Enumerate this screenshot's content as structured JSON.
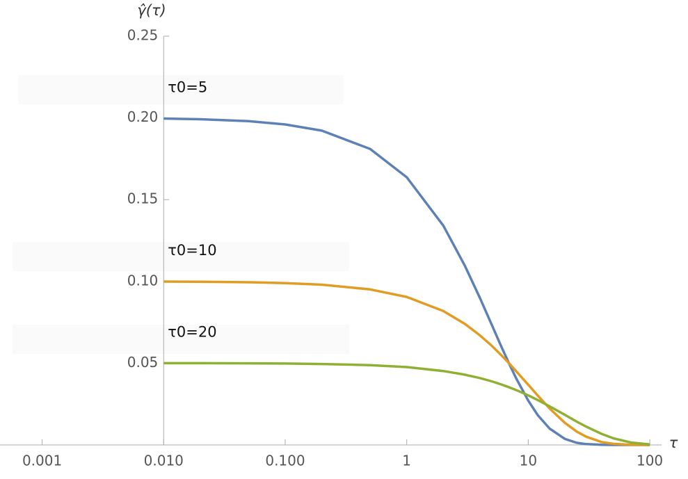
{
  "chart_data": {
    "type": "line",
    "x_label": "τ",
    "y_label": "γ̂(τ)",
    "x": [
      0.01,
      0.02,
      0.05,
      0.1,
      0.2,
      0.5,
      1,
      2,
      3,
      4,
      5,
      6,
      7,
      8,
      10,
      12,
      15,
      20,
      25,
      30,
      40,
      50,
      70,
      100
    ],
    "series": [
      {
        "name": "τ0=5",
        "color": "#5e81b5",
        "values": [
          0.1996,
          0.1992,
          0.198,
          0.196,
          0.1922,
          0.181,
          0.1637,
          0.1341,
          0.1098,
          0.0899,
          0.0736,
          0.0602,
          0.0493,
          0.0404,
          0.0271,
          0.0181,
          0.01,
          0.0037,
          0.0013,
          0.0005,
          0.0001,
          0.0,
          0.0,
          0.0
        ]
      },
      {
        "name": "τ0=10",
        "color": "#e19c24",
        "values": [
          0.0999,
          0.0998,
          0.0995,
          0.099,
          0.098,
          0.0951,
          0.0905,
          0.0819,
          0.0741,
          0.067,
          0.0607,
          0.0549,
          0.0497,
          0.0449,
          0.0368,
          0.0301,
          0.0223,
          0.0135,
          0.0082,
          0.005,
          0.0018,
          0.0007,
          0.0001,
          0.0
        ]
      },
      {
        "name": "τ0=20",
        "color": "#8fb032",
        "values": [
          0.05,
          0.05,
          0.0499,
          0.0498,
          0.0495,
          0.0488,
          0.0476,
          0.0452,
          0.043,
          0.0409,
          0.0389,
          0.037,
          0.0352,
          0.0335,
          0.0303,
          0.0274,
          0.0236,
          0.0184,
          0.0143,
          0.0112,
          0.0068,
          0.0041,
          0.0015,
          0.0003
        ]
      }
    ],
    "x_log": true,
    "xlim": [
      0.00045,
      125
    ],
    "ylim": [
      0,
      0.25
    ],
    "xticks": [
      0.001,
      {
        "value": 0.01,
        "label": "0.010"
      },
      {
        "value": 0.1,
        "label": "0.100"
      },
      1,
      10,
      100
    ],
    "yticks": [
      0.05,
      {
        "value": 0.1,
        "label": "0.10"
      },
      0.15,
      {
        "value": 0.2,
        "label": "0.20"
      },
      0.25
    ],
    "y_axis_at": 0.01
  }
}
